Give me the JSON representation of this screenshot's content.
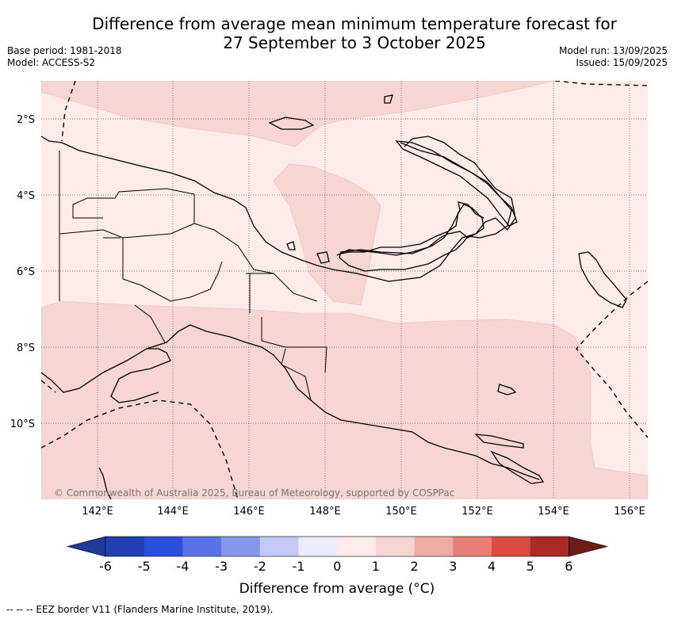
{
  "header": {
    "title_line1": "Difference from average mean minimum temperature forecast for",
    "title_line2": "27 September to 3 October 2025",
    "base_period": "Base period: 1981-2018",
    "model": "Model: ACCESS-S2",
    "model_run": "Model run: 13/09/2025",
    "issued": "Issued: 15/09/2025"
  },
  "map": {
    "lat_labels": [
      "2°S",
      "4°S",
      "6°S",
      "8°S",
      "10°S"
    ],
    "lon_labels": [
      "142°E",
      "144°E",
      "146°E",
      "148°E",
      "150°E",
      "152°E",
      "154°E",
      "156°E"
    ],
    "copyright": "© Commonwealth of Australia 2025, Bureau of Meteorology, supported by COSPPac",
    "colors": {
      "zone_0_1": "#fcebe9",
      "zone_1_2": "#f6d5d2",
      "coast": "#000000",
      "eez": "#000000",
      "grid": "#555555"
    }
  },
  "colorbar": {
    "ticks": [
      "-6",
      "-5",
      "-4",
      "-3",
      "-2",
      "-1",
      "0",
      "1",
      "2",
      "3",
      "4",
      "5",
      "6"
    ],
    "colors": [
      "#1f3a94",
      "#233fb5",
      "#2d4fe0",
      "#5a73e6",
      "#8598ec",
      "#c2c9f4",
      "#e9ecfb",
      "#fcebe9",
      "#f6d5d2",
      "#f0aba5",
      "#e77f75",
      "#db4b3f",
      "#ab2a21",
      "#6b1c17"
    ],
    "label": "Difference from average (°C)"
  },
  "footer": {
    "legend": "--  --  -- EEZ border V11 (Flanders Marine Institute, 2019)."
  }
}
